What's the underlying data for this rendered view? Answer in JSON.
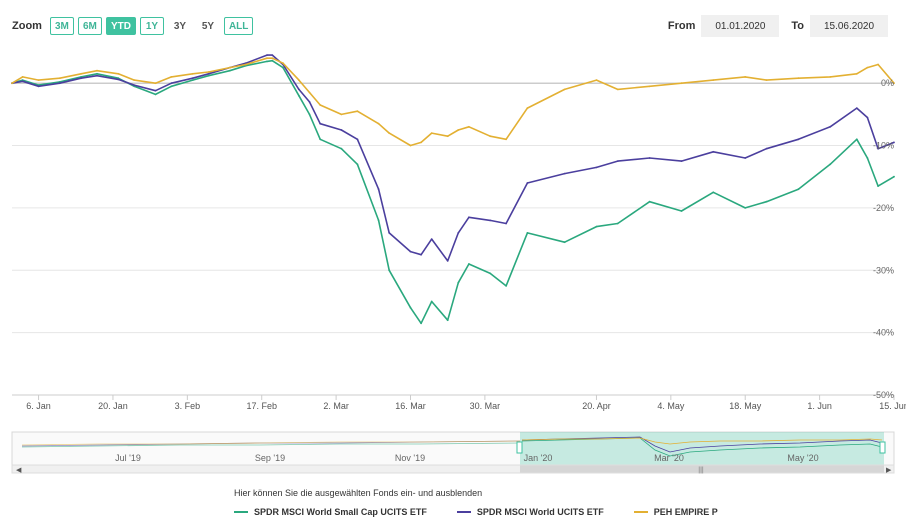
{
  "zoom": {
    "label": "Zoom",
    "buttons": [
      {
        "label": "3M",
        "style": "outline"
      },
      {
        "label": "6M",
        "style": "outline"
      },
      {
        "label": "YTD",
        "style": "active"
      },
      {
        "label": "1Y",
        "style": "outline"
      },
      {
        "label": "3Y",
        "style": "plain"
      },
      {
        "label": "5Y",
        "style": "plain"
      },
      {
        "label": "ALL",
        "style": "outline"
      }
    ]
  },
  "range": {
    "from_label": "From",
    "from_value": "01.01.2020",
    "to_label": "To",
    "to_value": "15.06.2020"
  },
  "colors": {
    "small_cap": "#2aa87e",
    "world": "#4b3f9e",
    "empire": "#e3b032",
    "accent": "#3fc2a0"
  },
  "legend": {
    "hint": "Hier können Sie die ausgewählten Fonds ein- und ausblenden",
    "items": [
      {
        "label": "SPDR MSCI World Small Cap UCITS ETF",
        "color": "#2aa87e"
      },
      {
        "label": "SPDR MSCI World UCITS ETF",
        "color": "#4b3f9e"
      },
      {
        "label": "PEH EMPIRE P",
        "color": "#e3b032"
      }
    ]
  },
  "navigator": {
    "labels": [
      "Jul '19",
      "Sep '19",
      "Nov '19",
      "Jan '20",
      "Mar '20",
      "May '20"
    ]
  },
  "chart_data": {
    "type": "line",
    "x_ticks": [
      "6. Jan",
      "20. Jan",
      "3. Feb",
      "17. Feb",
      "2. Mar",
      "16. Mar",
      "30. Mar",
      "20. Apr",
      "4. May",
      "18. May",
      "1. Jun",
      "15. Jun"
    ],
    "y_ticks": [
      "0%",
      "-10%",
      "-20%",
      "-30%",
      "-40%",
      "-50%"
    ],
    "ylim": [
      -50,
      5
    ],
    "x": [
      "01.01",
      "03.01",
      "06.01",
      "10.01",
      "14.01",
      "17.01",
      "21.01",
      "24.01",
      "28.01",
      "31.01",
      "04.02",
      "07.02",
      "11.02",
      "14.02",
      "18.02",
      "19.02",
      "21.02",
      "24.02",
      "26.02",
      "28.02",
      "03.03",
      "06.03",
      "10.03",
      "12.03",
      "16.03",
      "18.03",
      "20.03",
      "23.03",
      "25.03",
      "27.03",
      "31.03",
      "03.04",
      "07.04",
      "14.04",
      "20.04",
      "24.04",
      "30.04",
      "06.05",
      "12.05",
      "18.05",
      "22.05",
      "28.05",
      "03.06",
      "08.06",
      "10.06",
      "12.06",
      "15.06"
    ],
    "series": [
      {
        "name": "SPDR MSCI World Small Cap UCITS ETF",
        "values": [
          0,
          0.5,
          -0.3,
          0.2,
          1.0,
          1.5,
          0.8,
          -0.5,
          -1.8,
          -0.5,
          0.5,
          1.2,
          2.0,
          2.8,
          3.5,
          3.6,
          2.5,
          -2.0,
          -5.0,
          -9.0,
          -10.5,
          -13.0,
          -22.0,
          -30.0,
          -36.0,
          -38.5,
          -35.0,
          -38.0,
          -32.0,
          -29.0,
          -30.5,
          -32.5,
          -24.0,
          -25.5,
          -23.0,
          -22.5,
          -19.0,
          -20.5,
          -17.5,
          -20.0,
          -19.0,
          -17.0,
          -13.0,
          -9.0,
          -12.0,
          -16.5,
          -15.0
        ]
      },
      {
        "name": "SPDR MSCI World UCITS ETF",
        "values": [
          0,
          0.3,
          -0.5,
          0.0,
          0.8,
          1.2,
          0.6,
          -0.3,
          -1.2,
          0.0,
          0.8,
          1.5,
          2.5,
          3.2,
          4.5,
          4.5,
          3.0,
          -1.0,
          -3.0,
          -6.5,
          -7.5,
          -9.0,
          -17.0,
          -24.0,
          -27.0,
          -27.5,
          -25.0,
          -28.5,
          -24.0,
          -21.5,
          -22.0,
          -22.5,
          -16.0,
          -14.5,
          -13.5,
          -12.5,
          -12.0,
          -12.5,
          -11.0,
          -12.0,
          -10.5,
          -9.0,
          -7.0,
          -4.0,
          -5.5,
          -10.5,
          -9.5
        ]
      },
      {
        "name": "PEH EMPIRE P",
        "values": [
          0,
          1.0,
          0.5,
          0.8,
          1.5,
          2.0,
          1.5,
          0.5,
          0.0,
          1.0,
          1.5,
          1.8,
          2.5,
          3.0,
          4.0,
          4.0,
          3.2,
          0.5,
          -1.5,
          -3.5,
          -5.0,
          -4.5,
          -6.5,
          -8.0,
          -10.0,
          -9.5,
          -8.0,
          -8.5,
          -7.5,
          -7.0,
          -8.5,
          -9.0,
          -4.0,
          -1.0,
          0.5,
          -1.0,
          -0.5,
          0.0,
          0.5,
          1.0,
          0.5,
          0.8,
          1.0,
          1.5,
          2.5,
          3.0,
          0.0
        ]
      }
    ]
  }
}
